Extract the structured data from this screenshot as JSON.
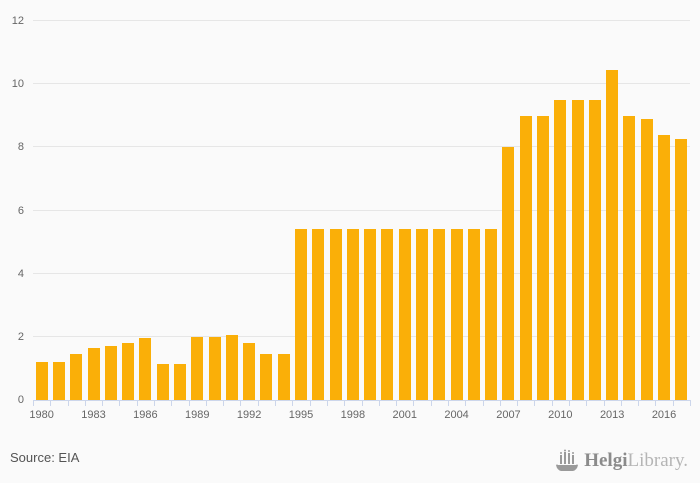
{
  "chart_data": {
    "type": "bar",
    "title": "",
    "xlabel": "",
    "ylabel": "",
    "categories": [
      1980,
      1981,
      1982,
      1983,
      1984,
      1985,
      1986,
      1987,
      1988,
      1989,
      1990,
      1991,
      1992,
      1993,
      1994,
      1995,
      1996,
      1997,
      1998,
      1999,
      2000,
      2001,
      2002,
      2003,
      2004,
      2005,
      2006,
      2007,
      2008,
      2009,
      2010,
      2011,
      2012,
      2013,
      2014,
      2015,
      2016,
      2017
    ],
    "values": [
      1.2,
      1.2,
      1.45,
      1.65,
      1.7,
      1.8,
      1.95,
      1.15,
      1.15,
      2.0,
      2.0,
      2.05,
      1.8,
      1.45,
      1.45,
      5.4,
      5.4,
      5.4,
      5.4,
      5.4,
      5.4,
      5.4,
      5.4,
      5.4,
      5.4,
      5.4,
      5.4,
      8.0,
      9.0,
      9.0,
      9.5,
      9.5,
      9.5,
      10.45,
      9.0,
      8.9,
      8.4,
      8.25
    ],
    "ylim": [
      0,
      12
    ],
    "yticks": [
      0,
      2,
      4,
      6,
      8,
      10,
      12
    ],
    "xtick_label_years": [
      1980,
      1983,
      1986,
      1989,
      1992,
      1995,
      1998,
      2001,
      2004,
      2007,
      2010,
      2013,
      2016
    ],
    "grid": true,
    "legend_position": "none",
    "bar_color": "#FAAF08"
  },
  "footer": {
    "source": "Source: EIA",
    "brand_primary": "Helgi",
    "brand_secondary": "Library."
  },
  "colors": {
    "background": "#FAFAFA",
    "bar": "#FAAF08",
    "gridline": "#E6E6E6",
    "axis": "#CCD6EB",
    "tick_label": "#666666",
    "source_text": "#545454",
    "brand_dark": "#8B8B8B",
    "brand_light": "#B5B5B5"
  }
}
